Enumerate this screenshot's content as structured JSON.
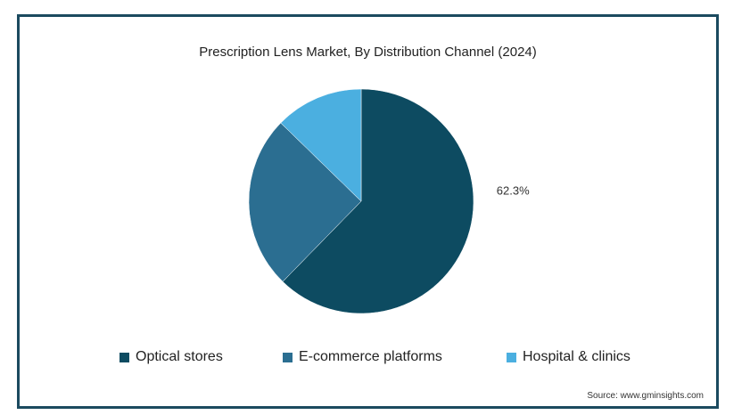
{
  "chart_data": {
    "type": "pie",
    "title": "Prescription Lens Market, By Distribution Channel (2024)",
    "slices": [
      {
        "name": "Optical stores",
        "value": 62.3,
        "color": "#0d4b61",
        "label": "62.3%"
      },
      {
        "name": "E-commerce platforms",
        "value": 25.0,
        "color": "#2b6e91",
        "label": ""
      },
      {
        "name": "Hospital & clinics",
        "value": 12.7,
        "color": "#4bafe0",
        "label": ""
      }
    ],
    "start_angle": "12 o'clock",
    "direction": "clockwise",
    "legend_position": "bottom"
  },
  "source": "Source: www.gminsights.com"
}
